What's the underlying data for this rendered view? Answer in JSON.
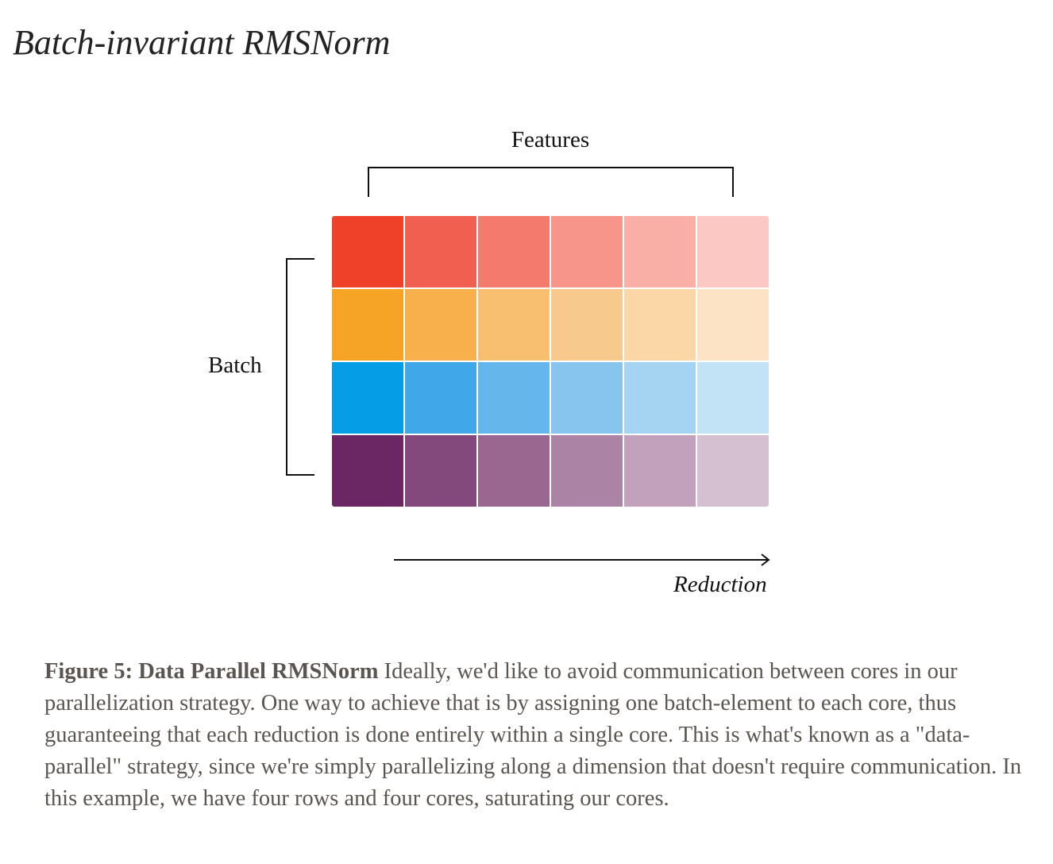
{
  "page": {
    "section_title": "Batch-invariant RMSNorm"
  },
  "diagram": {
    "features_label": "Features",
    "batch_label": "Batch",
    "reduction_label": "Reduction",
    "grid": {
      "rows": 4,
      "columns": 6,
      "row_colors": [
        [
          "#ef4129",
          "#f15f50",
          "#f57a6e",
          "#f8958b",
          "#faafa6",
          "#fcc8c4"
        ],
        [
          "#f6a425",
          "#f8b04d",
          "#f7bf6f",
          "#f8c98d",
          "#fbd6a6",
          "#fce3c5"
        ],
        [
          "#049de6",
          "#40a8e8",
          "#64b6eb",
          "#87c5ef",
          "#a5d4f2",
          "#c2e2f6"
        ],
        [
          "#6a2763",
          "#83497c",
          "#99678f",
          "#ab83a4",
          "#c1a1bb",
          "#d5c0d2"
        ]
      ]
    }
  },
  "caption": {
    "label": "Figure 5: Data Parallel RMSNorm",
    "text": " Ideally, we'd like to avoid communication between cores in our parallelization strategy. One way to achieve that is by assigning one batch-element to each core, thus guaranteeing that each reduction is done entirely within a single core. This is what's known as a \"data-parallel\" strategy, since we're simply parallelizing along a dimension that doesn't require communication. In this example, we have four rows and four cores, saturating our cores."
  }
}
